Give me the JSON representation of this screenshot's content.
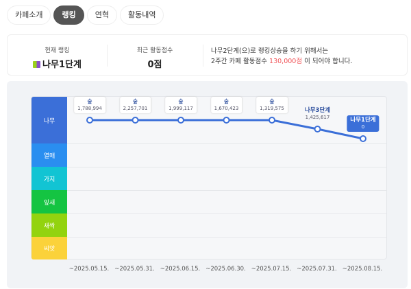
{
  "tabs": [
    {
      "label": "카페소개",
      "active": false
    },
    {
      "label": "랭킹",
      "active": true
    },
    {
      "label": "연혁",
      "active": false
    },
    {
      "label": "활동내역",
      "active": false
    }
  ],
  "summary": {
    "rank_label": "현재 랭킹",
    "rank_value": "나무1단계",
    "rank_icon": "sprout-badge-icon",
    "score_label": "최근 활동점수",
    "score_value": "0점",
    "message_line1": "나무2단계(으)로 랭킹상승을 하기 위해서는",
    "message_line2_prefix": "2주간 카페 활동점수",
    "message_highlight": "130,000점",
    "message_line2_suffix": "이 되어야 합니다.",
    "highlight_color": "#f0575b"
  },
  "chart_data": {
    "type": "line",
    "bands": [
      {
        "label": "나무",
        "color": "#3b6fd8"
      },
      {
        "label": "열매",
        "color": "#2a8ef0"
      },
      {
        "label": "가지",
        "color": "#12c4d3"
      },
      {
        "label": "잎새",
        "color": "#14c442"
      },
      {
        "label": "새싹",
        "color": "#93d30f"
      },
      {
        "label": "씨앗",
        "color": "#fbd23a"
      }
    ],
    "categories": [
      "~2025.05.15.",
      "~2025.05.31.",
      "~2025.06.15.",
      "~2025.06.30.",
      "~2025.07.15.",
      "~2025.07.31.",
      "~2025.08.15."
    ],
    "points": [
      {
        "stage": "숲",
        "score": "1,788,994"
      },
      {
        "stage": "숲",
        "score": "2,257,701"
      },
      {
        "stage": "숲",
        "score": "1,999,117"
      },
      {
        "stage": "숲",
        "score": "1,670,423"
      },
      {
        "stage": "숲",
        "score": "1,319,575"
      },
      {
        "stage": "나무3단계",
        "score": "1,425,617"
      },
      {
        "stage": "나무1단계",
        "score": "0",
        "current": true
      }
    ],
    "line_color": "#3b6fd8"
  }
}
